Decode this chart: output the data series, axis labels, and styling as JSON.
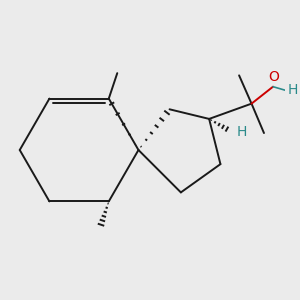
{
  "bg_color": "#ebebeb",
  "bond_color": "#1a1a1a",
  "oh_color": "#cc0000",
  "h_color": "#2a8a8a",
  "line_width": 1.4,
  "fig_size": [
    3.0,
    3.0
  ],
  "dpi": 100,
  "xlim": [
    -2.4,
    2.6
  ],
  "ylim": [
    -1.8,
    1.8
  ]
}
